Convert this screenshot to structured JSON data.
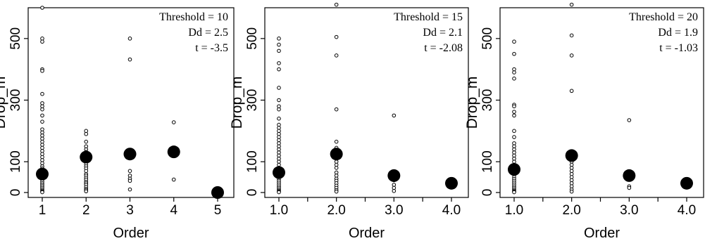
{
  "chart_data": [
    {
      "type": "scatter",
      "xlabel": "Order",
      "ylabel": "Drop_m",
      "xlim": [
        1,
        5
      ],
      "ylim": [
        0,
        600
      ],
      "x_tick_values": [
        1,
        2,
        3,
        4,
        5
      ],
      "x_tick_labels": [
        "1",
        "2",
        "3",
        "4",
        "5"
      ],
      "y_tick_values": [
        0,
        100,
        300,
        500
      ],
      "y_tick_labels": [
        "0",
        "100",
        "300",
        "500"
      ],
      "annotations": [
        "Threshold = 10",
        "Dd = 2.5",
        "t = -3.5"
      ],
      "observations": [
        {
          "x": 1,
          "values": [
            600,
            500,
            490,
            400,
            395,
            320,
            290,
            280,
            270,
            250,
            230,
            205,
            195,
            185,
            175,
            165,
            155,
            145,
            135,
            125,
            115,
            105,
            95,
            85,
            78,
            70,
            62,
            55,
            48,
            42,
            36,
            30,
            25,
            20,
            15,
            10,
            6,
            3,
            1
          ]
        },
        {
          "x": 2,
          "values": [
            200,
            190,
            165,
            150,
            140,
            132,
            125,
            118,
            110,
            100,
            92,
            85,
            78,
            70,
            60,
            55,
            48,
            42,
            35,
            30,
            25,
            18,
            12,
            8,
            4
          ]
        },
        {
          "x": 3,
          "values": [
            500,
            432,
            70,
            55,
            45,
            38,
            10
          ]
        },
        {
          "x": 4,
          "values": [
            228,
            42
          ]
        },
        {
          "x": 5,
          "values": []
        }
      ],
      "means": {
        "x": [
          1,
          2,
          3,
          4,
          5
        ],
        "y": [
          60,
          115,
          125,
          132,
          0
        ]
      }
    },
    {
      "type": "scatter",
      "xlabel": "Order",
      "ylabel": "Drop_m",
      "xlim": [
        1,
        4
      ],
      "ylim": [
        0,
        600
      ],
      "x_tick_values": [
        1,
        1.5,
        2,
        2.5,
        3,
        3.5,
        4
      ],
      "x_tick_labels": [
        "1.0",
        "",
        "2.0",
        "",
        "3.0",
        "",
        "4.0"
      ],
      "y_tick_values": [
        0,
        100,
        300,
        500
      ],
      "y_tick_labels": [
        "0",
        "100",
        "300",
        "500"
      ],
      "annotations": [
        "Threshold = 15",
        "Dd = 2.1",
        "t = -2.08"
      ],
      "observations": [
        {
          "x": 1,
          "values": [
            500,
            480,
            460,
            420,
            400,
            340,
            300,
            280,
            270,
            240,
            220,
            210,
            200,
            190,
            180,
            170,
            160,
            150,
            140,
            130,
            120,
            110,
            100,
            90,
            80,
            72,
            65,
            58,
            50,
            44,
            38,
            32,
            26,
            20,
            15,
            10,
            6,
            3,
            1
          ]
        },
        {
          "x": 2,
          "values": [
            610,
            505,
            445,
            270,
            165,
            145,
            110,
            100,
            90,
            80,
            65,
            55,
            45,
            38,
            30,
            22,
            15,
            8,
            3
          ]
        },
        {
          "x": 3,
          "values": [
            250,
            40,
            25,
            15,
            5
          ]
        },
        {
          "x": 4,
          "values": []
        }
      ],
      "means": {
        "x": [
          1,
          2,
          3,
          4
        ],
        "y": [
          65,
          125,
          55,
          30
        ]
      }
    },
    {
      "type": "scatter",
      "xlabel": "Order",
      "ylabel": "Drop_m",
      "xlim": [
        1,
        4
      ],
      "ylim": [
        0,
        600
      ],
      "x_tick_values": [
        1,
        1.5,
        2,
        2.5,
        3,
        3.5,
        4
      ],
      "x_tick_labels": [
        "1.0",
        "",
        "2.0",
        "",
        "3.0",
        "",
        "4.0"
      ],
      "y_tick_values": [
        0,
        100,
        300,
        500
      ],
      "y_tick_labels": [
        "0",
        "100",
        "300",
        "500"
      ],
      "annotations": [
        "Threshold = 20",
        "Dd = 1.9",
        "t = -1.03"
      ],
      "observations": [
        {
          "x": 1,
          "values": [
            490,
            450,
            400,
            390,
            370,
            285,
            280,
            262,
            250,
            200,
            180,
            160,
            150,
            140,
            130,
            120,
            110,
            100,
            90,
            80,
            72,
            65,
            58,
            50,
            44,
            38,
            32,
            26,
            20,
            15,
            10,
            6,
            3,
            1
          ]
        },
        {
          "x": 2,
          "values": [
            610,
            510,
            445,
            330,
            100,
            90,
            80,
            70,
            60,
            50,
            40,
            30,
            20,
            10,
            3
          ]
        },
        {
          "x": 3,
          "values": [
            235,
            20,
            15
          ]
        },
        {
          "x": 4,
          "values": []
        }
      ],
      "means": {
        "x": [
          1,
          2,
          3,
          4
        ],
        "y": [
          75,
          120,
          55,
          30
        ]
      }
    }
  ]
}
